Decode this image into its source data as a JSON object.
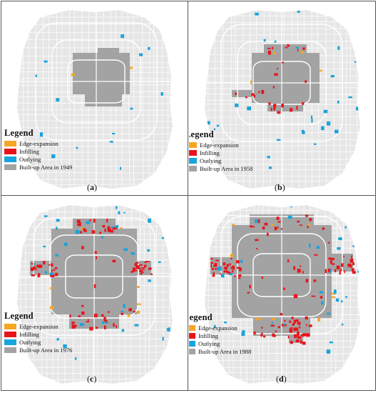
{
  "colors": {
    "edge_expansion": "#f5a623",
    "infilling": "#e8141b",
    "outlying": "#18a4dc",
    "built_up": "#a3a3a3",
    "map_base": "#e6e6e6",
    "roads": "#ffffff"
  },
  "panels": [
    {
      "caption_open": "(",
      "caption_letter": "a",
      "caption_close": ")",
      "legend": {
        "title": "Legend",
        "items": [
          "Edge-expansion",
          "Infilling",
          "Outlying",
          "Built-up Area in 1949"
        ]
      }
    },
    {
      "caption_open": "(",
      "caption_letter": "b",
      "caption_close": ")",
      "legend": {
        "title": "Legend",
        "items": [
          "Edge-expansion",
          "Infilling",
          "Outlying",
          "Built-up Area in 1958"
        ]
      }
    },
    {
      "caption_open": "(",
      "caption_letter": "c",
      "caption_close": ")",
      "legend": {
        "title": "Legend",
        "items": [
          "Edge-expansion",
          "Infilling",
          "Outlying",
          "Built-up Area in 1976"
        ]
      }
    },
    {
      "caption_open": "(",
      "caption_letter": "d",
      "caption_close": ")",
      "legend": {
        "title": "Legend",
        "items": [
          "Edge-expansion",
          "Infilling",
          "Outlying",
          "Built-up Area in 1988"
        ]
      }
    }
  ]
}
